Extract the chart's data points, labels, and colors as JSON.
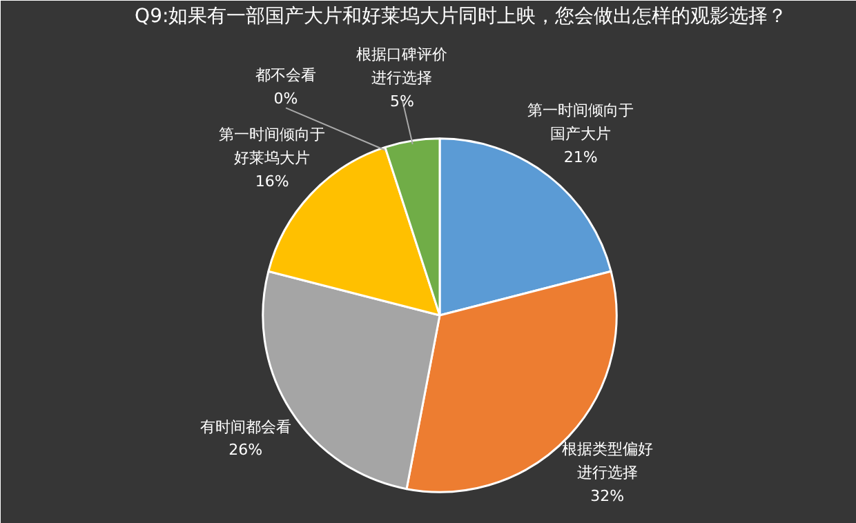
{
  "chart_data": {
    "type": "pie",
    "title": "Q9:如果有一部国产大片和好莱坞大片同时上映，您会做出怎样的观影选择？",
    "categories": [
      "第一时间倾向于国产大片",
      "根据类型偏好进行选择",
      "有时间都会看",
      "第一时间倾向于好莱坞大片",
      "都不会看",
      "根据口碑评价进行选择"
    ],
    "values": [
      21,
      32,
      26,
      16,
      0,
      5
    ],
    "value_labels": [
      "21%",
      "32%",
      "26%",
      "16%",
      "0%",
      "5%"
    ],
    "colors": [
      "#5b9bd5",
      "#ed7d31",
      "#a5a5a5",
      "#ffc000",
      "#4472c4",
      "#70ad47"
    ]
  }
}
